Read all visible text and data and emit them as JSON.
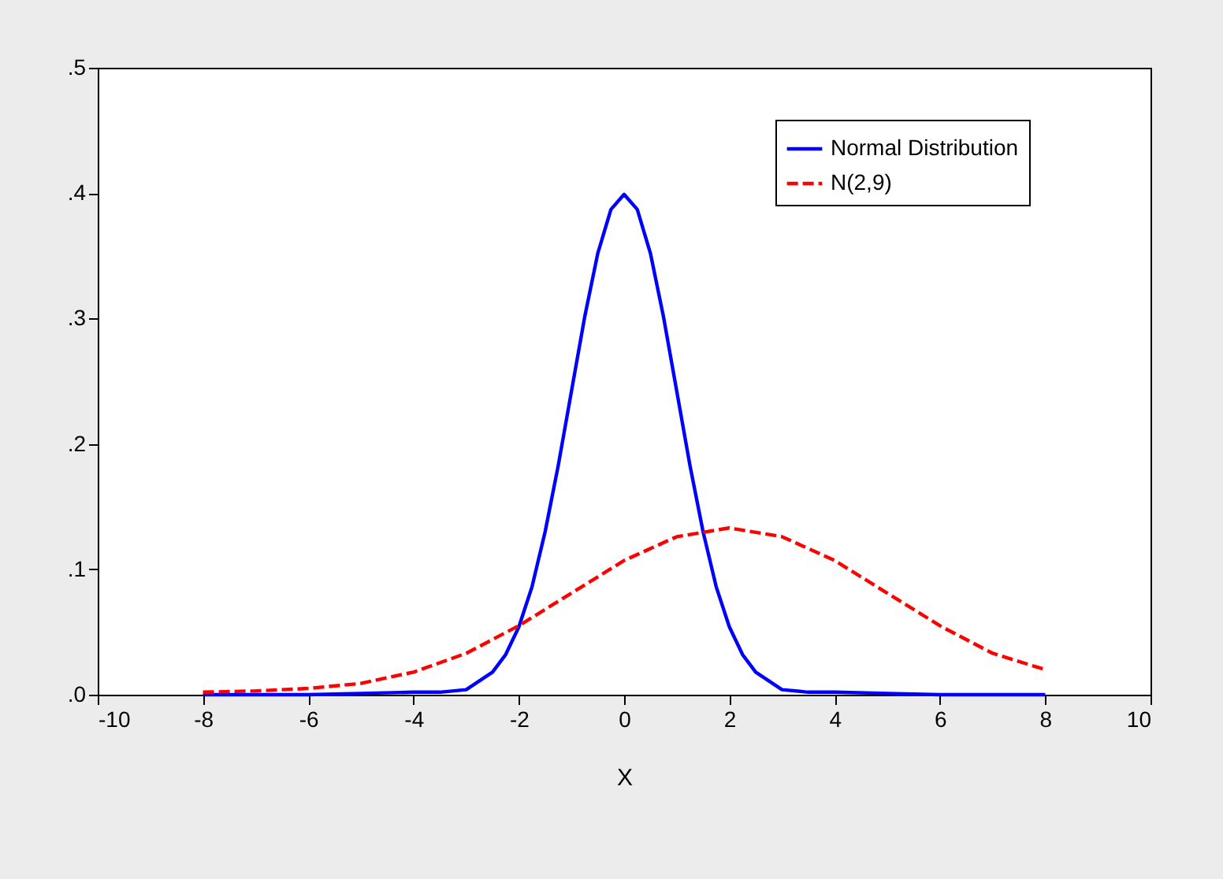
{
  "chart_data": {
    "type": "line",
    "xlabel": "X",
    "xlim": [
      -10,
      10
    ],
    "xticks": [
      -10,
      -8,
      -6,
      -4,
      -2,
      0,
      2,
      4,
      6,
      8,
      10
    ],
    "ylim": [
      0,
      0.5
    ],
    "yticks": [
      {
        "value": 0,
        "label": ".0"
      },
      {
        "value": 0.1,
        "label": ".1"
      },
      {
        "value": 0.2,
        "label": ".2"
      },
      {
        "value": 0.3,
        "label": ".3"
      },
      {
        "value": 0.4,
        "label": ".4"
      },
      {
        "value": 0.5,
        "label": ".5"
      }
    ],
    "grid": false,
    "legend": "top right",
    "marker": "none",
    "series": [
      {
        "name": "Normal Distribution",
        "color": "#0000ff",
        "line_style": "solid",
        "x": [
          -8,
          -6,
          -5,
          -4,
          -3.5,
          -3,
          -2.5,
          -2.25,
          -2,
          -1.75,
          -1.5,
          -1.25,
          -1,
          -0.75,
          -0.5,
          -0.25,
          0,
          0.25,
          0.5,
          0.75,
          1,
          1.25,
          1.5,
          1.75,
          2,
          2.25,
          2.5,
          3,
          3.5,
          4,
          5,
          6,
          8
        ],
        "values": [
          0,
          0,
          0.001,
          0.002,
          0.002,
          0.004,
          0.018,
          0.032,
          0.054,
          0.086,
          0.13,
          0.183,
          0.242,
          0.301,
          0.352,
          0.387,
          0.399,
          0.387,
          0.352,
          0.301,
          0.242,
          0.183,
          0.13,
          0.086,
          0.054,
          0.032,
          0.018,
          0.004,
          0.002,
          0.002,
          0.001,
          0,
          0
        ]
      },
      {
        "name": "N(2,9)",
        "color": "#ff0000",
        "line_style": "dashed",
        "x": [
          -8,
          -7,
          -6,
          -5,
          -4,
          -3,
          -2,
          -1,
          0,
          1,
          2,
          3,
          4,
          5,
          6,
          7,
          8
        ],
        "values": [
          0.002,
          0.003,
          0.005,
          0.009,
          0.018,
          0.033,
          0.055,
          0.081,
          0.107,
          0.126,
          0.133,
          0.126,
          0.107,
          0.081,
          0.055,
          0.033,
          0.02
        ]
      }
    ]
  }
}
